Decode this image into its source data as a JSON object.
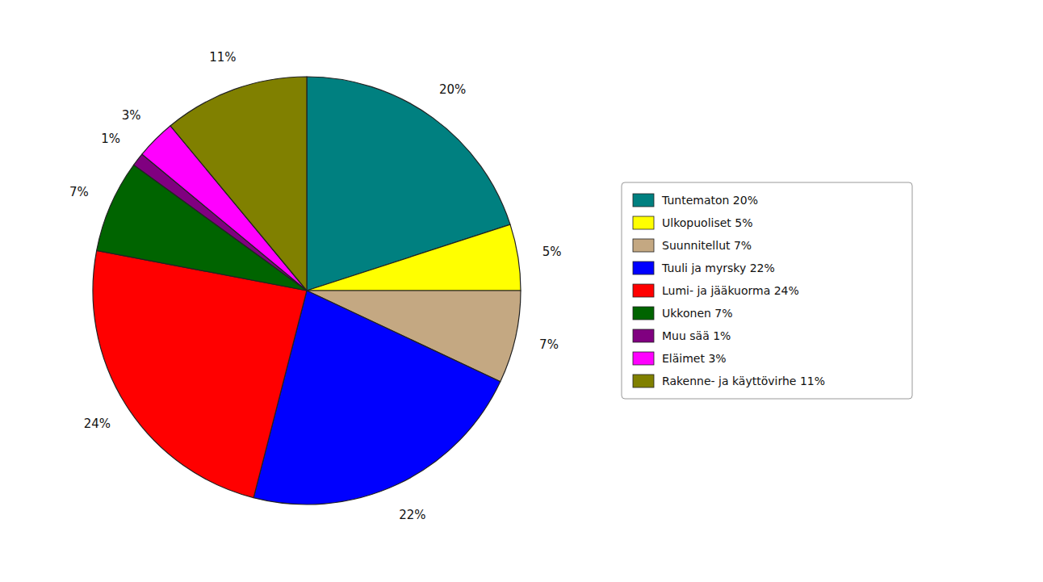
{
  "chart_data": {
    "type": "pie",
    "categories": [
      "Tuntematon 20%",
      "Ulkopuoliset 5%",
      "Suunnitellut 7%",
      "Tuuli ja myrsky 22%",
      "Lumi- ja jääkuorma 24%",
      "Ukkonen 7%",
      "Muu sää 1%",
      "Eläimet 3%",
      "Rakenne- ja käyttövirhe 11%"
    ],
    "values": [
      20,
      5,
      7,
      22,
      24,
      7,
      1,
      3,
      11
    ],
    "value_labels": [
      "20%",
      "5%",
      "7%",
      "22%",
      "24%",
      "7%",
      "1%",
      "3%",
      "11%"
    ],
    "colors": [
      "#008080",
      "#FFFF00",
      "#C4A882",
      "#0000FF",
      "#FF0000",
      "#006400",
      "#800080",
      "#FF00FF",
      "#808000"
    ],
    "data_labels": true,
    "legend": "right"
  }
}
